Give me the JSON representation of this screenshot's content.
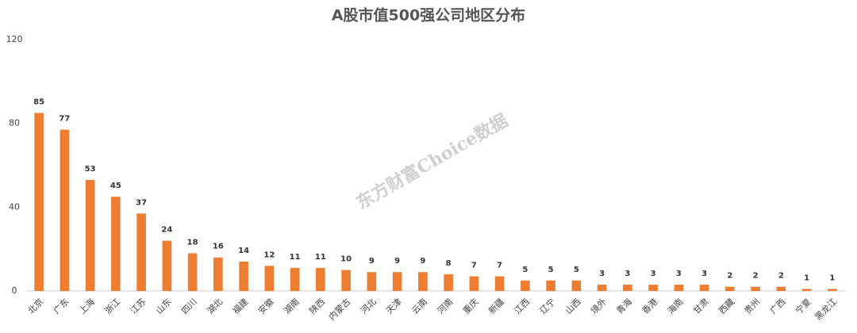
{
  "chart_data": {
    "type": "bar",
    "title": "A股市值500强公司地区分布",
    "watermark": "东方财富Choice数据",
    "categories": [
      "北京",
      "广东",
      "上海",
      "浙江",
      "江苏",
      "山东",
      "四川",
      "湖北",
      "福建",
      "安徽",
      "湖南",
      "陕西",
      "内蒙古",
      "河北",
      "天津",
      "云南",
      "河南",
      "重庆",
      "新疆",
      "江西",
      "辽宁",
      "山西",
      "境外",
      "青海",
      "香港",
      "海南",
      "甘肃",
      "西藏",
      "贵州",
      "广西",
      "宁夏",
      "黑龙江"
    ],
    "values": [
      85,
      77,
      53,
      45,
      37,
      24,
      18,
      16,
      14,
      12,
      11,
      11,
      10,
      9,
      9,
      9,
      8,
      7,
      7,
      5,
      5,
      5,
      3,
      3,
      3,
      3,
      3,
      2,
      2,
      2,
      1,
      1
    ],
    "color": "#ed7d31",
    "ylim": [
      0,
      120
    ],
    "yticks": [
      0,
      40,
      80,
      120
    ],
    "grid": false
  }
}
